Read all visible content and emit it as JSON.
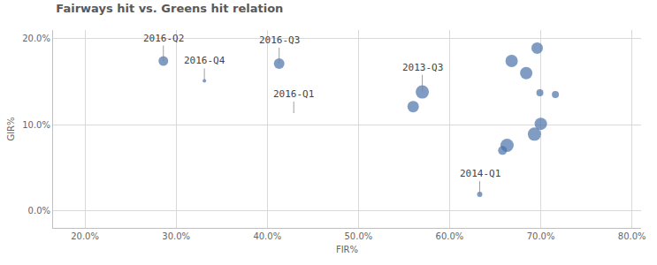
{
  "chart_data": {
    "type": "scatter",
    "title": "Fairways hit vs. Greens hit relation",
    "x_label": "FIR%",
    "y_label": "GIR%",
    "x": [
      28.6,
      33.1,
      41.3,
      42.9,
      57.0,
      56.0,
      66.8,
      69.6,
      68.4,
      69.9,
      71.6,
      66.3,
      65.8,
      69.3,
      70.0,
      63.3
    ],
    "y": [
      17.4,
      15.1,
      17.1,
      11.4,
      13.8,
      12.1,
      17.4,
      18.9,
      16.0,
      13.7,
      13.5,
      7.6,
      7.0,
      8.9,
      10.1,
      1.9
    ],
    "sizes": [
      11,
      4,
      12,
      1,
      15,
      13,
      14,
      13,
      14,
      8,
      8,
      15,
      10,
      15,
      14,
      6
    ],
    "labels": [
      "2016-Q2",
      "2016-Q4",
      "2016-Q3",
      "2016-Q1",
      "2013-Q3",
      null,
      null,
      null,
      null,
      null,
      null,
      null,
      null,
      null,
      null,
      "2014-Q1"
    ],
    "color": "#4a72a8",
    "xlim": [
      16.5,
      81
    ],
    "ylim": [
      -2,
      21
    ],
    "xticks": [
      {
        "value": 20,
        "label": "20.0%"
      },
      {
        "value": 30,
        "label": "30.0%"
      },
      {
        "value": 40,
        "label": "40.0%"
      },
      {
        "value": 50,
        "label": "50.0%"
      },
      {
        "value": 60,
        "label": "60.0%"
      },
      {
        "value": 70,
        "label": "70.0%"
      },
      {
        "value": 80,
        "label": "80.0%"
      }
    ],
    "yticks": [
      {
        "value": 0,
        "label": "0.0%"
      },
      {
        "value": 10,
        "label": "10.0%"
      },
      {
        "value": 20,
        "label": "20.0%"
      }
    ],
    "grid": true
  }
}
